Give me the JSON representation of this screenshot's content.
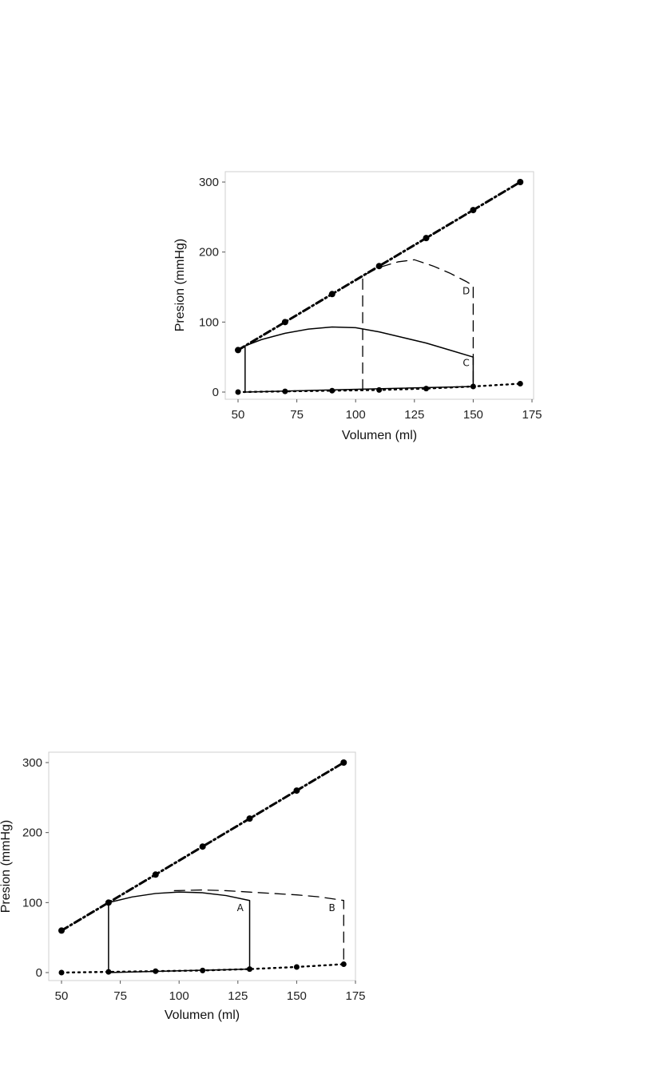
{
  "chart_data": [
    {
      "type": "line",
      "xlabel": "Volumen (ml)",
      "ylabel": "Presion (mmHg)",
      "xlim": [
        50,
        175
      ],
      "ylim": [
        0,
        300
      ],
      "xticks": [
        "50",
        "75",
        "100",
        "125",
        "150",
        "175"
      ],
      "yticks": [
        "0",
        "100",
        "200",
        "300"
      ],
      "grid": false,
      "series": [
        {
          "style": "dash-dot",
          "points": [
            [
              50,
              60
            ],
            [
              70,
              100
            ],
            [
              90,
              140
            ],
            [
              110,
              180
            ],
            [
              130,
              220
            ],
            [
              150,
              260
            ],
            [
              170,
              300
            ]
          ]
        },
        {
          "style": "dotted",
          "points": [
            [
              50,
              0
            ],
            [
              70,
              1
            ],
            [
              90,
              2
            ],
            [
              110,
              3
            ],
            [
              130,
              5
            ],
            [
              150,
              8
            ],
            [
              170,
              12
            ]
          ]
        },
        {
          "style": "solid",
          "label": "C",
          "points": [
            [
              150,
              8
            ],
            [
              53,
              0
            ],
            [
              53,
              66
            ],
            [
              60,
              75
            ],
            [
              70,
              84
            ],
            [
              80,
              90
            ],
            [
              90,
              93
            ],
            [
              100,
              92
            ],
            [
              110,
              86
            ],
            [
              120,
              78
            ],
            [
              130,
              70
            ],
            [
              140,
              60
            ],
            [
              150,
              50
            ],
            [
              150,
              8
            ]
          ]
        },
        {
          "style": "dashed",
          "label": "D",
          "points": [
            [
              103,
              3
            ],
            [
              103,
              166
            ],
            [
              110,
              178
            ],
            [
              118,
              186
            ],
            [
              125,
              189
            ],
            [
              133,
              180
            ],
            [
              140,
              170
            ],
            [
              147,
              158
            ],
            [
              150,
              152
            ],
            [
              150,
              8
            ]
          ]
        }
      ],
      "annotations": [
        {
          "text": "D",
          "x": 147,
          "y": 140
        },
        {
          "text": "C",
          "x": 147,
          "y": 37
        }
      ]
    },
    {
      "type": "line",
      "xlabel": "Volumen (ml)",
      "ylabel": "Presion (mmHg)",
      "xlim": [
        50,
        175
      ],
      "ylim": [
        0,
        300
      ],
      "xticks": [
        "50",
        "75",
        "100",
        "125",
        "150",
        "175"
      ],
      "yticks": [
        "0",
        "100",
        "200",
        "300"
      ],
      "grid": false,
      "series": [
        {
          "style": "dash-dot",
          "points": [
            [
              50,
              60
            ],
            [
              70,
              100
            ],
            [
              90,
              140
            ],
            [
              110,
              180
            ],
            [
              130,
              220
            ],
            [
              150,
              260
            ],
            [
              170,
              300
            ]
          ]
        },
        {
          "style": "dotted",
          "points": [
            [
              50,
              0
            ],
            [
              70,
              1
            ],
            [
              90,
              2
            ],
            [
              110,
              3
            ],
            [
              130,
              5
            ],
            [
              150,
              8
            ],
            [
              170,
              12
            ]
          ]
        },
        {
          "style": "solid",
          "label": "A",
          "points": [
            [
              130,
              5
            ],
            [
              70,
              0
            ],
            [
              70,
              100
            ],
            [
              80,
              108
            ],
            [
              90,
              113
            ],
            [
              100,
              115
            ],
            [
              110,
              114
            ],
            [
              120,
              110
            ],
            [
              130,
              103
            ],
            [
              130,
              5
            ]
          ]
        },
        {
          "style": "dashed",
          "label": "B",
          "points": [
            [
              98,
              117
            ],
            [
              110,
              118
            ],
            [
              120,
              117
            ],
            [
              130,
              115
            ],
            [
              140,
              113
            ],
            [
              150,
              111
            ],
            [
              160,
              108
            ],
            [
              170,
              103
            ],
            [
              170,
              12
            ]
          ]
        }
      ],
      "annotations": [
        {
          "text": "A",
          "x": 126,
          "y": 88
        },
        {
          "text": "B",
          "x": 165,
          "y": 88
        }
      ]
    }
  ]
}
